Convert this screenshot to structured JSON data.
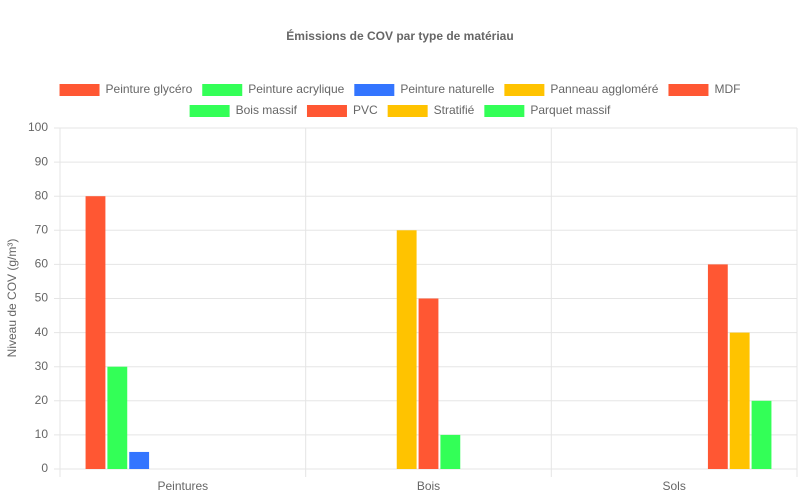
{
  "chart_data": {
    "type": "bar",
    "title": "Émissions de COV par type de matériau",
    "y_label": "Niveau de COV (g/m³)",
    "categories": [
      "Peintures",
      "Bois",
      "Sols"
    ],
    "series": [
      {
        "name": "Peinture glycéro",
        "color": "#FF5733",
        "values": [
          80,
          null,
          null
        ]
      },
      {
        "name": "Peinture acrylique",
        "color": "#33FF57",
        "values": [
          30,
          null,
          null
        ]
      },
      {
        "name": "Peinture naturelle",
        "color": "#3375FF",
        "values": [
          5,
          null,
          null
        ]
      },
      {
        "name": "Panneau aggloméré",
        "color": "#FFC300",
        "values": [
          null,
          70,
          null
        ]
      },
      {
        "name": "MDF",
        "color": "#FF5733",
        "values": [
          null,
          50,
          null
        ]
      },
      {
        "name": "Bois massif",
        "color": "#33FF57",
        "values": [
          null,
          10,
          null
        ]
      },
      {
        "name": "PVC",
        "color": "#FF5733",
        "values": [
          null,
          null,
          60
        ]
      },
      {
        "name": "Stratifié",
        "color": "#FFC300",
        "values": [
          null,
          null,
          40
        ]
      },
      {
        "name": "Parquet massif",
        "color": "#33FF57",
        "values": [
          null,
          null,
          20
        ]
      }
    ],
    "ylim": [
      0,
      100
    ],
    "yticks": [
      0,
      10,
      20,
      30,
      40,
      50,
      60,
      70,
      80,
      90,
      100
    ],
    "grid": true,
    "legend": "top"
  }
}
